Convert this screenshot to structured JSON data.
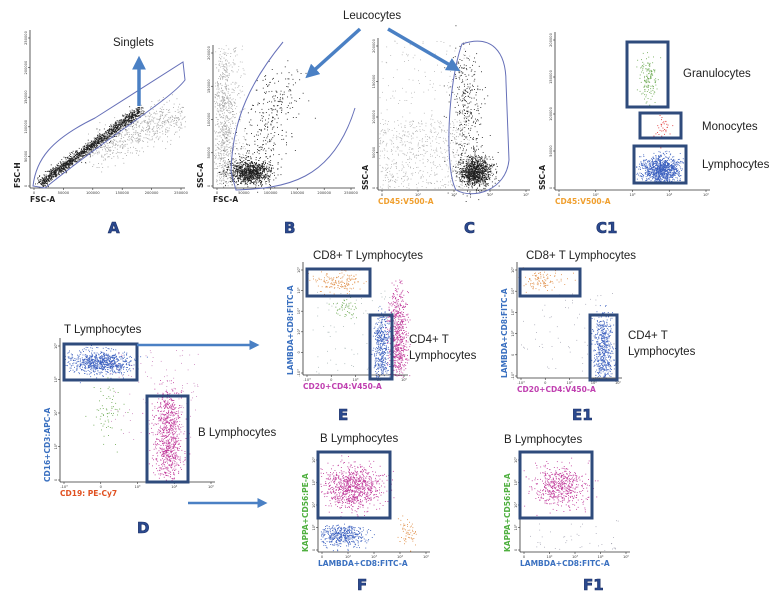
{
  "labels": {
    "singlets": "Singlets",
    "leucocytes": "Leucocytes",
    "granulocytes": "Granulocytes",
    "monocytes": "Monocytes",
    "lymphocytes": "Lymphocytes",
    "t_lymphocytes": "T Lymphocytes",
    "b_lymphocytes": "B Lymphocytes",
    "cd8_t_lymphocytes": "CD8+ T Lymphocytes",
    "cd4_t_line1": "CD4+ T",
    "cd4_t_line2": "Lymphocytes"
  },
  "panels": {
    "A": {
      "letter": "A",
      "xlabel": "FSC-A",
      "ylabel": "FSC-H",
      "xticks": [
        "0",
        "50000",
        "100000",
        "150000",
        "200000",
        "250000"
      ],
      "yticks": [
        "0",
        "50000",
        "100000",
        "150000",
        "200000",
        "250000"
      ]
    },
    "B": {
      "letter": "B",
      "xlabel": "FSC-A",
      "ylabel": "SSC-A",
      "xticks": [
        "0",
        "50000",
        "100000",
        "150000",
        "200000",
        "250000"
      ],
      "yticks": [
        "0",
        "50000",
        "100000",
        "150000",
        "200000"
      ]
    },
    "C": {
      "letter": "C",
      "xlabel": "CD45:V500-A",
      "ylabel": "SSC-A",
      "xticks": [
        "0",
        "10²",
        "10³",
        "10⁴",
        "10⁵"
      ],
      "yticks": [
        "0",
        "50000",
        "100000",
        "150000",
        "200000"
      ]
    },
    "C1": {
      "letter": "C1",
      "xlabel": "CD45:V500-A",
      "ylabel": "SSC-A",
      "xticks": [
        "0",
        "10²",
        "10³",
        "10⁴",
        "10⁵"
      ],
      "yticks": [
        "0",
        "50000",
        "100000",
        "150000",
        "200000"
      ]
    },
    "D": {
      "letter": "D",
      "xlabel": "CD19: PE-Cy7",
      "ylabel": "CD16+CD3:APC-A",
      "xticks": [
        "-10³",
        "0",
        "10³",
        "10⁴",
        "10⁵"
      ],
      "yticks": [
        "0",
        "10²",
        "10³",
        "10⁴",
        "10⁵"
      ]
    },
    "E": {
      "letter": "E",
      "xlabel": "CD20+CD4:V450-A",
      "ylabel": "LAMBDA+CD8:FITC-A",
      "xticks": [
        "-10³",
        "0",
        "10³",
        "10⁴",
        "10⁵"
      ],
      "yticks": [
        "-10³",
        "0",
        "10²",
        "10³",
        "10⁴",
        "10⁵"
      ]
    },
    "E1": {
      "letter": "E1",
      "xlabel": "CD20+CD4:V450-A",
      "ylabel": "LAMBDA+CD8:FITC-A",
      "xticks": [
        "-10³",
        "0",
        "10³",
        "10⁴",
        "10⁵"
      ],
      "yticks": [
        "-10³",
        "0",
        "10²",
        "10³",
        "10⁴",
        "10⁵"
      ]
    },
    "F": {
      "letter": "F",
      "xlabel": "LAMBDA+CD8:FITC-A",
      "ylabel": "KAPPA+CD56:PE-A",
      "xticks": [
        "0",
        "10²",
        "10³",
        "10⁴",
        "10⁵"
      ],
      "yticks": [
        "0",
        "10²",
        "10³",
        "10⁴",
        "10⁵"
      ]
    },
    "F1": {
      "letter": "F1",
      "xlabel": "LAMBDA+CD8:FITC-A",
      "ylabel": "KAPPA+CD56:PE-A",
      "xticks": [
        "0",
        "10²",
        "10³",
        "10⁴",
        "10⁵"
      ],
      "yticks": [
        "0",
        "10²",
        "10³",
        "10⁴",
        "10⁵"
      ]
    }
  },
  "colors": {
    "events_black": "#1e1e1e",
    "events_gray": "#a8a8a8",
    "lymphocytes_blue": "#3a5fbf",
    "b_cells_magenta": "#c0399a",
    "granulocytes_green": "#6aa84f",
    "monocytes_red": "#e03030",
    "cd8_orange": "#e0904a",
    "axis_orange": "#f0a030",
    "axis_blue": "#3a70c0",
    "axis_pink": "#c040b0",
    "axis_green": "#50b040",
    "axis_red": "#e05020",
    "arrow_blue": "#4a80c4",
    "letter_blue": "#2b4a8f"
  }
}
